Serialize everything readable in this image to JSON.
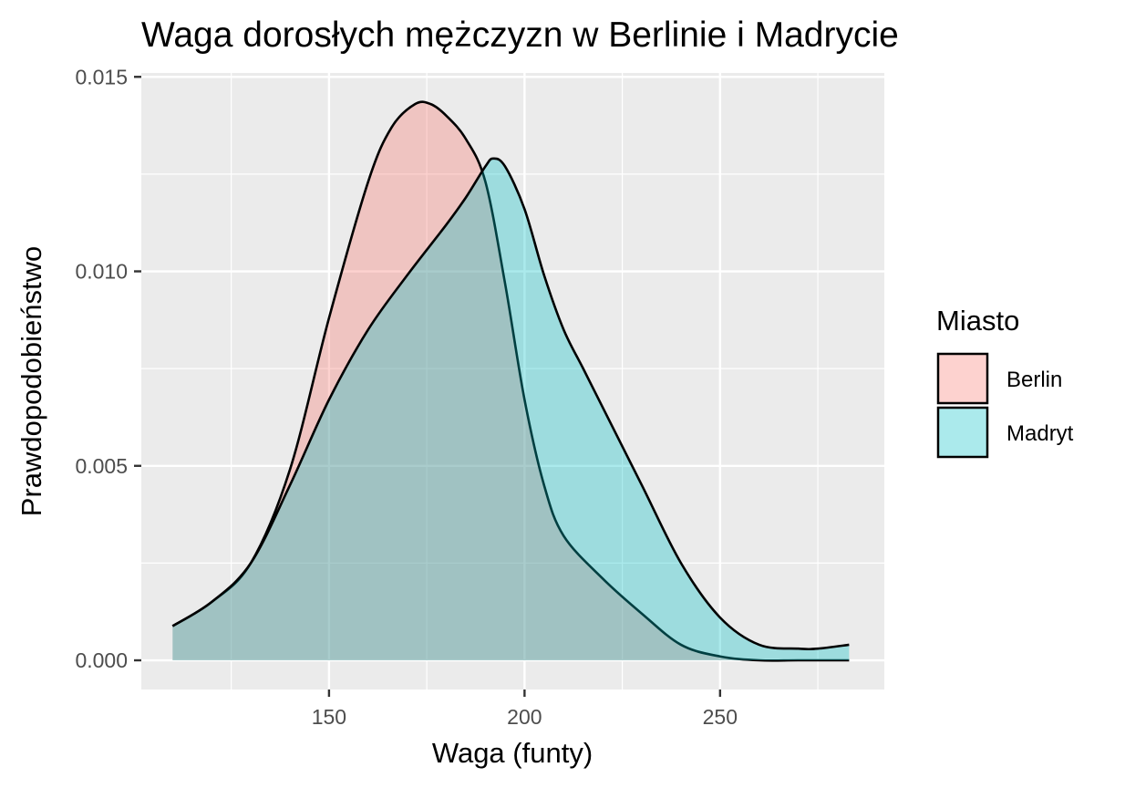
{
  "chart_data": {
    "type": "area",
    "title": "Waga dorosłych mężczyzn w Berlinie i Madrycie",
    "xlabel": "Waga (funty)",
    "ylabel": "Prawdopodobieństwo",
    "xlim": [
      102,
      292
    ],
    "ylim": [
      -0.00075,
      0.0151
    ],
    "x_ticks": [
      150,
      200,
      250
    ],
    "x_tick_labels": [
      "150",
      "200",
      "250"
    ],
    "y_ticks": [
      0,
      0.005,
      0.01,
      0.015
    ],
    "y_tick_labels": [
      "0.000",
      "0.005",
      "0.010",
      "0.015"
    ],
    "grid": true,
    "legend": {
      "title": "Miasto",
      "position": "right"
    },
    "series": [
      {
        "name": "Berlin",
        "color": "#F8766D",
        "x": [
          110,
          120,
          130,
          140,
          150,
          160,
          166,
          172,
          176,
          180,
          185,
          190,
          195,
          200,
          205,
          210,
          220,
          230,
          240,
          250,
          260,
          270,
          283
        ],
        "y": [
          0.00088,
          0.0015,
          0.0025,
          0.0049,
          0.0088,
          0.0123,
          0.0137,
          0.0143,
          0.0143,
          0.014,
          0.0134,
          0.0123,
          0.0097,
          0.0067,
          0.0045,
          0.0032,
          0.0021,
          0.0012,
          0.0004,
          0.0001,
          0.0,
          0.0,
          0.0
        ]
      },
      {
        "name": "Madryt",
        "color": "#00BFC4",
        "x": [
          110,
          120,
          130,
          140,
          150,
          160,
          170,
          180,
          185,
          190,
          192,
          195,
          200,
          205,
          210,
          215,
          220,
          230,
          240,
          250,
          260,
          270,
          275,
          283
        ],
        "y": [
          0.00088,
          0.0015,
          0.0025,
          0.0045,
          0.0067,
          0.0085,
          0.0099,
          0.0112,
          0.0119,
          0.0127,
          0.0129,
          0.0127,
          0.0116,
          0.0099,
          0.0085,
          0.0075,
          0.0065,
          0.0045,
          0.0025,
          0.0011,
          0.0004,
          0.0003,
          0.0003,
          0.0004
        ]
      }
    ]
  }
}
